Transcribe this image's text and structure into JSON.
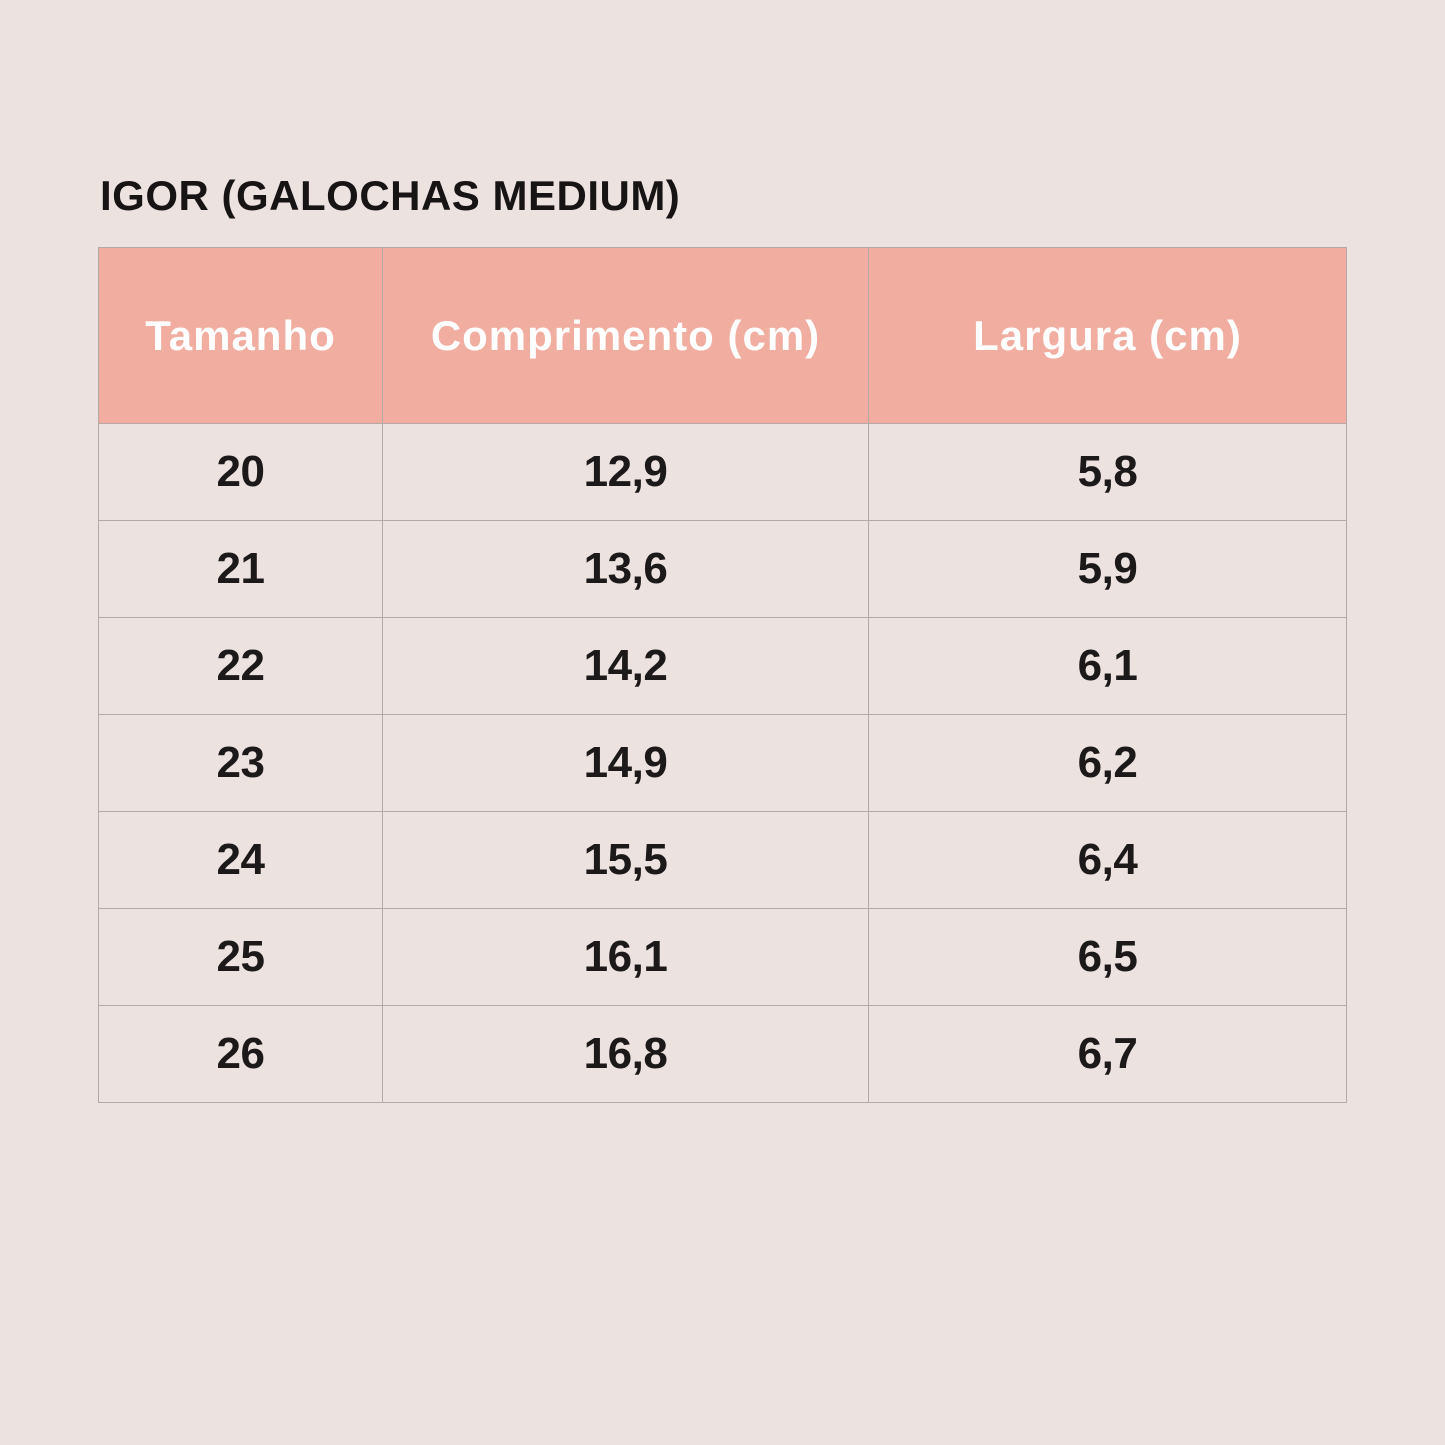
{
  "page_title": "IGOR (GALOCHAS MEDIUM)",
  "colors": {
    "page_bg": "#ece3e0",
    "header_bg": "#f0ada0",
    "header_text": "#ffffff",
    "cell_text": "#1b1919",
    "border": "#b6a9a5"
  },
  "chart_data": {
    "type": "table",
    "title": "IGOR (GALOCHAS MEDIUM)",
    "columns": [
      "Tamanho",
      "Comprimento (cm)",
      "Largura (cm)"
    ],
    "rows": [
      [
        "20",
        "12,9",
        "5,8"
      ],
      [
        "21",
        "13,6",
        "5,9"
      ],
      [
        "22",
        "14,2",
        "6,1"
      ],
      [
        "23",
        "14,9",
        "6,2"
      ],
      [
        "24",
        "15,5",
        "6,4"
      ],
      [
        "25",
        "16,1",
        "6,5"
      ],
      [
        "26",
        "16,8",
        "6,7"
      ]
    ]
  }
}
